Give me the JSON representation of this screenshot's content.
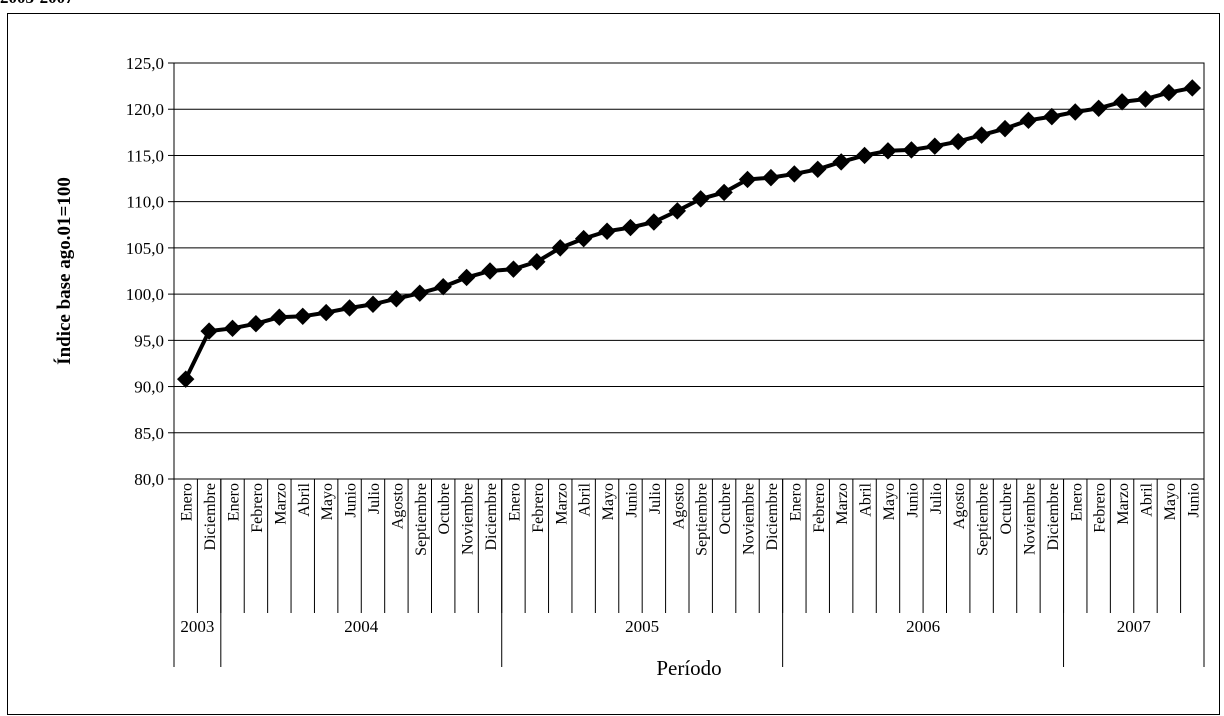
{
  "header": {
    "text": "2003-2007"
  },
  "chart_data": {
    "type": "line",
    "title": "",
    "xlabel": "Período",
    "ylabel": "Índice base ago.01=100",
    "ylim": [
      80,
      125
    ],
    "yticks": [
      "80,0",
      "85,0",
      "90,0",
      "95,0",
      "100,0",
      "105,0",
      "110,0",
      "115,0",
      "120,0",
      "125,0"
    ],
    "grid": true,
    "marker": "diamond",
    "categories": [
      "Enero",
      "Diciembre",
      "Enero",
      "Febrero",
      "Marzo",
      "Abril",
      "Mayo",
      "Junio",
      "Julio",
      "Agosto",
      "Septiembre",
      "Octubre",
      "Noviembre",
      "Diciembre",
      "Enero",
      "Febrero",
      "Marzo",
      "Abril",
      "Mayo",
      "Junio",
      "Julio",
      "Agosto",
      "Septiembre",
      "Octubre",
      "Noviembre",
      "Diciembre",
      "Enero",
      "Febrero",
      "Marzo",
      "Abril",
      "Mayo",
      "Junio",
      "Julio",
      "Agosto",
      "Septiembre",
      "Octubre",
      "Noviembre",
      "Diciembre",
      "Enero",
      "Febrero",
      "Marzo",
      "Abril",
      "Mayo",
      "Junio"
    ],
    "year_groups": [
      {
        "label": "2003",
        "count": 2
      },
      {
        "label": "2004",
        "count": 12
      },
      {
        "label": "2005",
        "count": 12
      },
      {
        "label": "2006",
        "count": 12
      },
      {
        "label": "2007",
        "count": 6
      }
    ],
    "series": [
      {
        "color": "#000000",
        "values": [
          90.8,
          96.0,
          96.3,
          96.8,
          97.5,
          97.6,
          98.0,
          98.5,
          98.9,
          99.5,
          100.1,
          100.8,
          101.8,
          102.5,
          102.7,
          103.5,
          105.0,
          106.0,
          106.8,
          107.2,
          107.8,
          109.0,
          110.3,
          111.0,
          112.4,
          112.6,
          113.0,
          113.5,
          114.3,
          115.0,
          115.5,
          115.6,
          116.0,
          116.5,
          117.2,
          117.9,
          118.8,
          119.2,
          119.7,
          120.1,
          120.8,
          121.1,
          121.8,
          122.3
        ]
      }
    ]
  }
}
